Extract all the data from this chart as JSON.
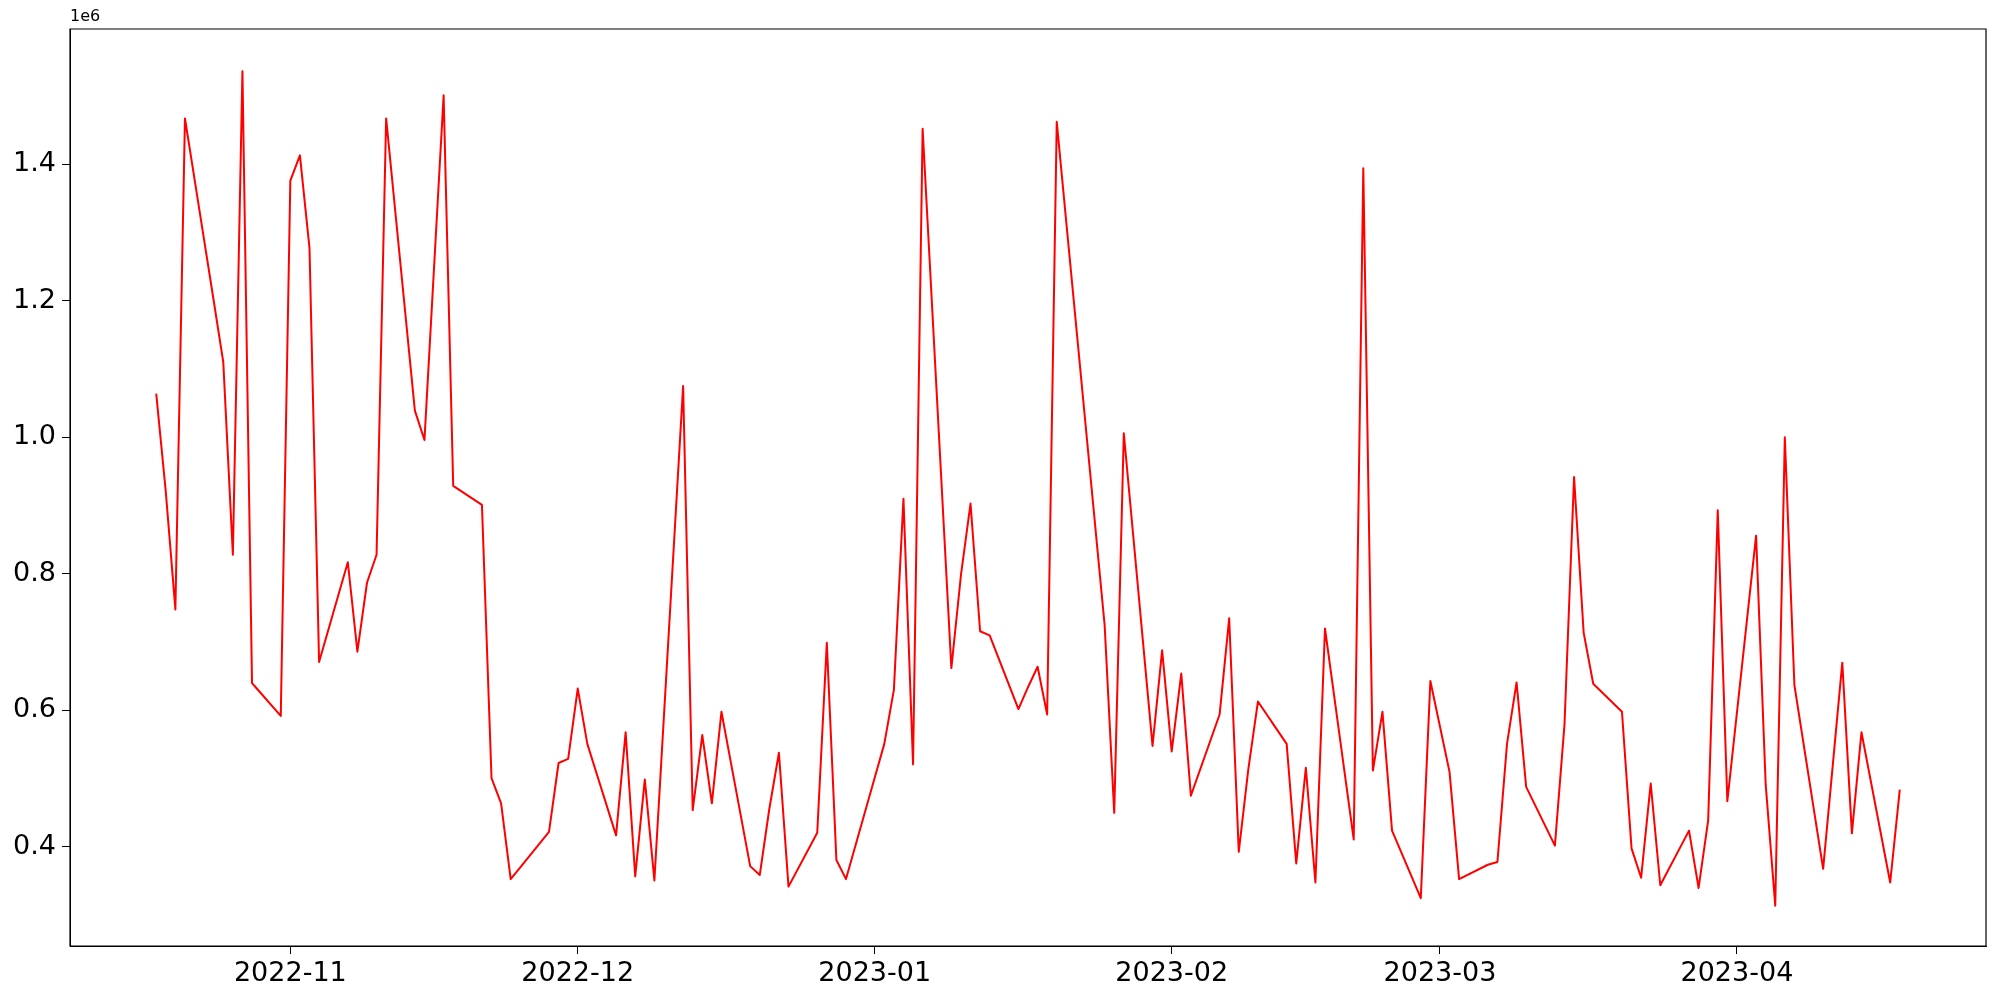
{
  "chart_data": {
    "type": "line",
    "annotations": [
      "1e6"
    ],
    "x": [
      "2022-10-18",
      "2022-10-19",
      "2022-10-20",
      "2022-10-21",
      "2022-10-24",
      "2022-10-25",
      "2022-10-26",
      "2022-10-27",
      "2022-10-28",
      "2022-10-31",
      "2022-11-01",
      "2022-11-02",
      "2022-11-03",
      "2022-11-04",
      "2022-11-07",
      "2022-11-08",
      "2022-11-09",
      "2022-11-10",
      "2022-11-11",
      "2022-11-14",
      "2022-11-15",
      "2022-11-17",
      "2022-11-18",
      "2022-11-21",
      "2022-11-22",
      "2022-11-23",
      "2022-11-24",
      "2022-11-25",
      "2022-11-28",
      "2022-11-29",
      "2022-11-30",
      "2022-12-01",
      "2022-12-02",
      "2022-12-05",
      "2022-12-06",
      "2022-12-07",
      "2022-12-08",
      "2022-12-09",
      "2022-12-12",
      "2022-12-13",
      "2022-12-14",
      "2022-12-15",
      "2022-12-16",
      "2022-12-19",
      "2022-12-20",
      "2022-12-21",
      "2022-12-22",
      "2022-12-23",
      "2022-12-26",
      "2022-12-27",
      "2022-12-28",
      "2022-12-29",
      "2023-01-02",
      "2023-01-03",
      "2023-01-04",
      "2023-01-05",
      "2023-01-06",
      "2023-01-09",
      "2023-01-10",
      "2023-01-11",
      "2023-01-12",
      "2023-01-13",
      "2023-01-16",
      "2023-01-17",
      "2023-01-18",
      "2023-01-19",
      "2023-01-20",
      "2023-01-25",
      "2023-01-26",
      "2023-01-27",
      "2023-01-30",
      "2023-01-31",
      "2023-02-01",
      "2023-02-02",
      "2023-02-03",
      "2023-02-06",
      "2023-02-07",
      "2023-02-08",
      "2023-02-09",
      "2023-02-10",
      "2023-02-13",
      "2023-02-14",
      "2023-02-15",
      "2023-02-16",
      "2023-02-17",
      "2023-02-20",
      "2023-02-21",
      "2023-02-22",
      "2023-02-23",
      "2023-02-24",
      "2023-02-27",
      "2023-02-28",
      "2023-03-02",
      "2023-03-03",
      "2023-03-06",
      "2023-03-07",
      "2023-03-08",
      "2023-03-09",
      "2023-03-10",
      "2023-03-13",
      "2023-03-14",
      "2023-03-15",
      "2023-03-16",
      "2023-03-17",
      "2023-03-20",
      "2023-03-21",
      "2023-03-22",
      "2023-03-23",
      "2023-03-24",
      "2023-03-27",
      "2023-03-28",
      "2023-03-29",
      "2023-03-30",
      "2023-03-31",
      "2023-04-03",
      "2023-04-04",
      "2023-04-05",
      "2023-04-06",
      "2023-04-07",
      "2023-04-10",
      "2023-04-12",
      "2023-04-13",
      "2023-04-14",
      "2023-04-17",
      "2023-04-18"
    ],
    "series": [
      {
        "color": "#ff0000",
        "values": [
          1.064,
          0.92,
          0.748,
          1.467,
          1.2,
          1.11,
          0.828,
          1.536,
          0.64,
          0.592,
          1.376,
          1.413,
          1.277,
          0.671,
          0.817,
          0.686,
          0.787,
          0.828,
          1.467,
          1.039,
          0.996,
          1.501,
          0.929,
          0.901,
          0.501,
          0.464,
          0.353,
          0.37,
          0.422,
          0.523,
          0.529,
          0.632,
          0.551,
          0.417,
          0.568,
          0.357,
          0.499,
          0.351,
          1.075,
          0.454,
          0.564,
          0.464,
          0.598,
          0.372,
          0.359,
          0.456,
          0.538,
          0.342,
          0.421,
          0.699,
          0.381,
          0.353,
          0.551,
          0.63,
          0.91,
          0.521,
          1.452,
          0.662,
          0.798,
          0.903,
          0.716,
          0.71,
          0.602,
          0.634,
          0.664,
          0.594,
          1.462,
          0.725,
          0.45,
          1.006,
          0.548,
          0.688,
          0.54,
          0.654,
          0.475,
          0.594,
          0.735,
          0.393,
          0.514,
          0.613,
          0.551,
          0.376,
          0.516,
          0.348,
          0.72,
          0.411,
          1.394,
          0.512,
          0.598,
          0.424,
          0.325,
          0.643,
          0.51,
          0.353,
          0.374,
          0.378,
          0.551,
          0.641,
          0.488,
          0.402,
          0.579,
          0.942,
          0.714,
          0.639,
          0.598,
          0.398,
          0.355,
          0.493,
          0.344,
          0.424,
          0.34,
          0.439,
          0.893,
          0.467,
          0.856,
          0.492,
          0.314,
          1.0,
          0.637,
          0.368,
          0.67,
          0.42,
          0.568,
          0.348,
          0.484
        ]
      }
    ],
    "xlim": [
      "2022-10-09",
      "2023-04-27"
    ],
    "xticks": [
      "2022-11",
      "2022-12",
      "2023-01",
      "2023-02",
      "2023-03",
      "2023-04"
    ],
    "ylim": [
      0.255,
      1.598
    ],
    "yticks": [
      {
        "value": 0.4,
        "label": "0.4"
      },
      {
        "value": 0.6,
        "label": "0.6"
      },
      {
        "value": 0.8,
        "label": "0.8"
      },
      {
        "value": 1.0,
        "label": "1.0"
      },
      {
        "value": 1.2,
        "label": "1.2"
      },
      {
        "value": 1.4,
        "label": "1.4"
      }
    ],
    "grid": false,
    "legend": false
  }
}
